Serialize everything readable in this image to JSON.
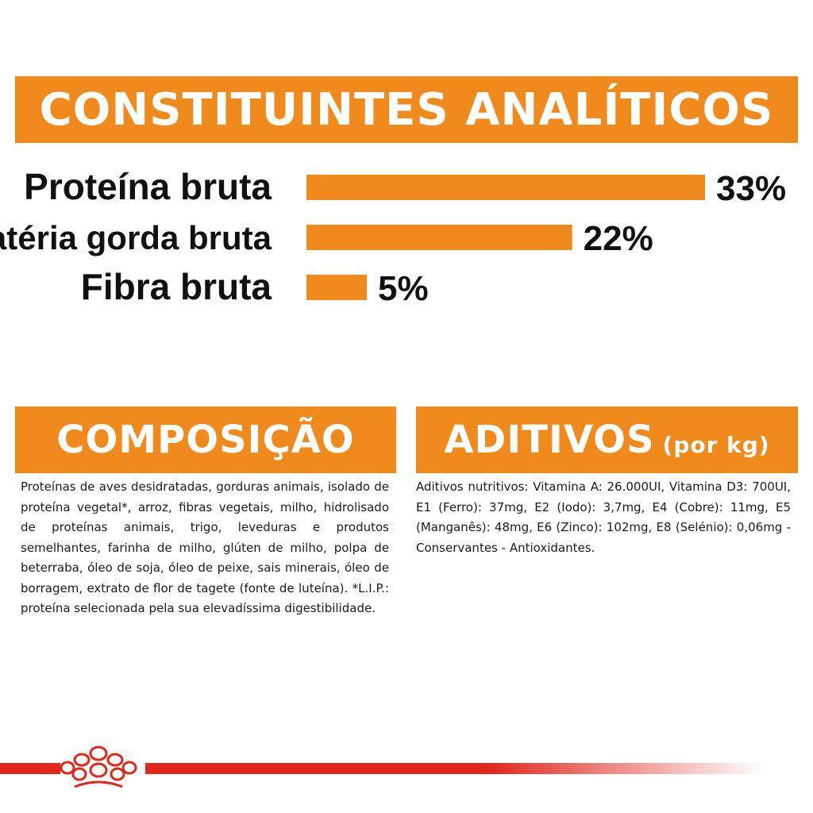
{
  "chart_data": {
    "type": "bar",
    "orientation": "horizontal",
    "title": "CONSTITUINTES ANALÍTICOS",
    "categories": [
      "Proteína bruta",
      "Matéria gorda bruta",
      "Fibra bruta"
    ],
    "values": [
      33,
      22,
      5
    ],
    "value_labels": [
      "33%",
      "22%",
      "5%"
    ],
    "unit": "%",
    "xlim": [
      0,
      33
    ],
    "bar_color": "#f08a1d",
    "grid": false
  },
  "composicao": {
    "title": "COMPOSIÇÃO",
    "text": "Proteínas de aves desidratadas, gorduras animais, isolado de proteína vegetal*, arroz, fibras vegetais, milho, hidrolisado de proteínas animais, trigo, leveduras e produtos semelhantes, farinha de milho, glúten de milho, polpa de beterraba, óleo de soja, óleo de peixe, sais minerais, óleo de borragem, extrato de flor de tagete (fonte de luteína). *L.I.P.: proteína selecionada pela sua elevadíssima digestibilidade."
  },
  "aditivos": {
    "title": "ADITIVOS",
    "subtitle": "(por kg)",
    "text": "Aditivos nutritivos: Vitamina A: 26.000UI, Vitamina D3: 700UI, E1 (Ferro): 37mg, E2 (Iodo): 3,7mg, E4 (Cobre): 11mg, E5 (Manganês): 48mg, E6 (Zinco): 102mg, E8 (Selénio): 0,06mg - Conservantes - Antioxidantes."
  },
  "colors": {
    "accent": "#f08a1d",
    "brand_red": "#e1261c"
  },
  "icons": {
    "logo": "royal-crown-logo"
  }
}
